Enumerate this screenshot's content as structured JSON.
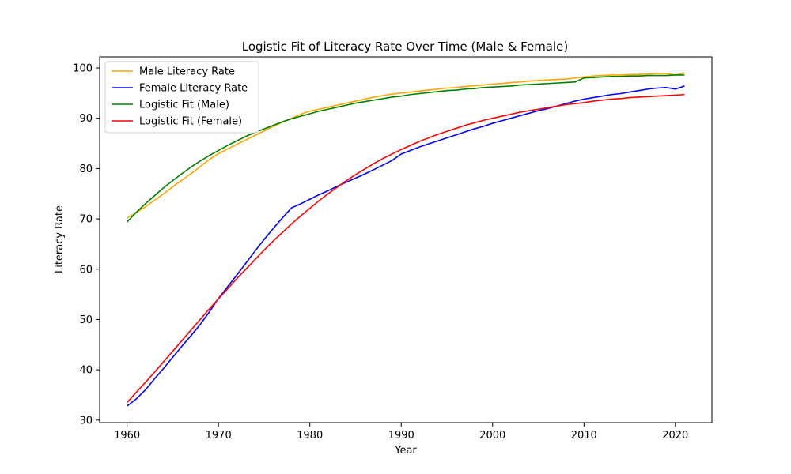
{
  "chart_data": {
    "type": "line",
    "title": "Logistic Fit of Literacy Rate Over Time (Male & Female)",
    "xlabel": "Year",
    "ylabel": "Literacy Rate",
    "xlim": [
      1957,
      2024
    ],
    "ylim": [
      29.5,
      102.2
    ],
    "xticks": [
      1960,
      1970,
      1980,
      1990,
      2000,
      2010,
      2020
    ],
    "yticks": [
      30,
      40,
      50,
      60,
      70,
      80,
      90,
      100
    ],
    "grid": false,
    "legend_position": "upper-left",
    "x": [
      1960,
      1961,
      1962,
      1963,
      1964,
      1965,
      1966,
      1967,
      1968,
      1969,
      1970,
      1971,
      1972,
      1973,
      1974,
      1975,
      1976,
      1977,
      1978,
      1979,
      1980,
      1981,
      1982,
      1983,
      1984,
      1985,
      1986,
      1987,
      1988,
      1989,
      1990,
      1991,
      1992,
      1993,
      1994,
      1995,
      1996,
      1997,
      1998,
      1999,
      2000,
      2001,
      2002,
      2003,
      2004,
      2005,
      2006,
      2007,
      2008,
      2009,
      2010,
      2011,
      2012,
      2013,
      2014,
      2015,
      2016,
      2017,
      2018,
      2019,
      2020,
      2021
    ],
    "series": [
      {
        "name": "Male Literacy Rate",
        "color": "#ffa500",
        "values": [
          70.2,
          71.2,
          72.4,
          73.7,
          75.0,
          76.4,
          77.7,
          79.0,
          80.4,
          81.8,
          83.0,
          83.9,
          84.8,
          85.7,
          86.6,
          87.5,
          88.4,
          89.2,
          90.0,
          90.8,
          91.4,
          91.8,
          92.2,
          92.6,
          93.0,
          93.4,
          93.8,
          94.2,
          94.5,
          94.8,
          95.0,
          95.2,
          95.4,
          95.6,
          95.8,
          96.0,
          96.1,
          96.3,
          96.5,
          96.6,
          96.8,
          96.9,
          97.1,
          97.2,
          97.4,
          97.5,
          97.6,
          97.7,
          97.8,
          98.0,
          98.2,
          98.4,
          98.5,
          98.6,
          98.6,
          98.7,
          98.7,
          98.8,
          98.9,
          98.9,
          98.6,
          99.0
        ]
      },
      {
        "name": "Female Literacy Rate",
        "color": "#0000ff",
        "values": [
          32.8,
          34.2,
          36.0,
          38.2,
          40.3,
          42.5,
          44.7,
          46.8,
          49.0,
          51.5,
          54.2,
          56.5,
          58.8,
          61.2,
          63.6,
          65.9,
          68.1,
          70.2,
          72.2,
          73.0,
          73.9,
          74.8,
          75.6,
          76.5,
          77.3,
          78.1,
          78.9,
          79.8,
          80.7,
          81.6,
          82.9,
          83.6,
          84.3,
          84.9,
          85.5,
          86.1,
          86.7,
          87.3,
          87.9,
          88.4,
          89.0,
          89.5,
          90.0,
          90.5,
          91.0,
          91.5,
          91.9,
          92.4,
          92.9,
          93.4,
          93.8,
          94.1,
          94.4,
          94.7,
          94.9,
          95.2,
          95.5,
          95.8,
          96.0,
          96.1,
          95.8,
          96.4
        ]
      },
      {
        "name": "Logistic Fit (Male)",
        "color": "#008000",
        "values": [
          69.4,
          71.3,
          73.0,
          74.6,
          76.2,
          77.6,
          79.0,
          80.3,
          81.5,
          82.6,
          83.6,
          84.6,
          85.5,
          86.4,
          87.2,
          87.9,
          88.6,
          89.3,
          89.9,
          90.4,
          90.9,
          91.4,
          91.8,
          92.2,
          92.6,
          93.0,
          93.3,
          93.6,
          93.9,
          94.2,
          94.4,
          94.7,
          94.9,
          95.1,
          95.3,
          95.5,
          95.6,
          95.8,
          95.9,
          96.1,
          96.2,
          96.3,
          96.4,
          96.6,
          96.7,
          96.8,
          96.9,
          97.0,
          97.1,
          97.2,
          98.0,
          98.1,
          98.2,
          98.3,
          98.3,
          98.4,
          98.4,
          98.5,
          98.5,
          98.5,
          98.6,
          98.6
        ]
      },
      {
        "name": "Logistic Fit (Female)",
        "color": "#ff0000",
        "values": [
          33.5,
          35.5,
          37.5,
          39.5,
          41.6,
          43.7,
          45.8,
          47.9,
          50.0,
          52.1,
          54.1,
          56.1,
          58.1,
          60.0,
          61.9,
          63.8,
          65.6,
          67.3,
          69.0,
          70.6,
          72.1,
          73.6,
          75.0,
          76.3,
          77.6,
          78.8,
          79.9,
          81.0,
          82.0,
          82.9,
          83.8,
          84.6,
          85.4,
          86.1,
          86.8,
          87.4,
          88.0,
          88.6,
          89.1,
          89.6,
          90.0,
          90.4,
          90.8,
          91.2,
          91.5,
          91.8,
          92.1,
          92.4,
          92.7,
          92.9,
          93.1,
          93.4,
          93.6,
          93.8,
          93.9,
          94.1,
          94.2,
          94.3,
          94.4,
          94.5,
          94.6,
          94.7
        ]
      }
    ]
  }
}
